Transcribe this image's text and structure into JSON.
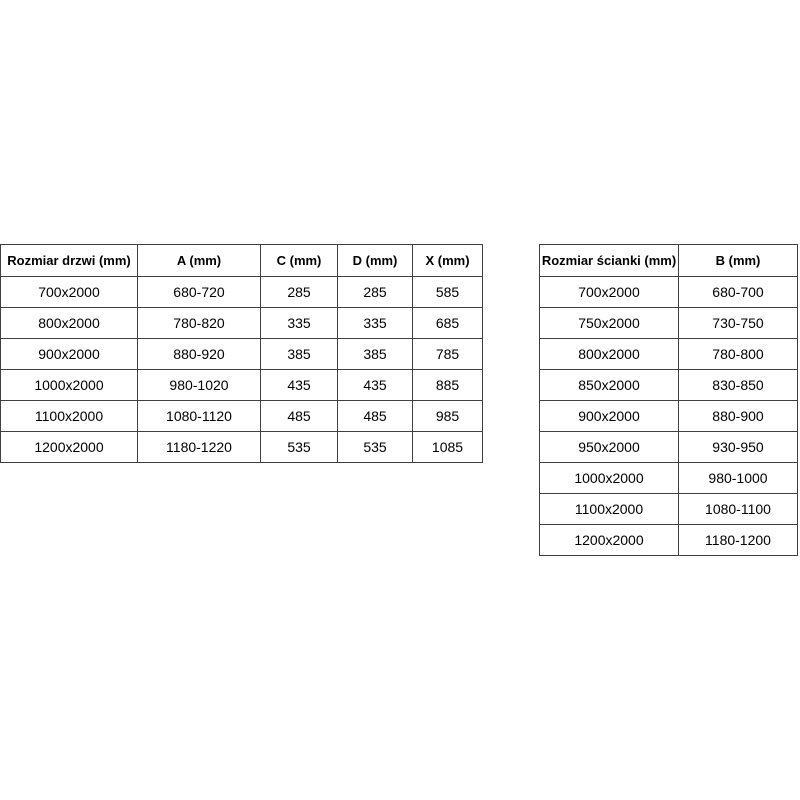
{
  "page": {
    "background_color": "#ffffff",
    "border_color": "#404040",
    "text_color": "#000000"
  },
  "tables": {
    "doors": {
      "title": "door sizes",
      "headers": [
        "Rozmiar drzwi (mm)",
        "A (mm)",
        "C (mm)",
        "D (mm)",
        "X (mm)"
      ],
      "rows": [
        [
          "700x2000",
          "680-720",
          "285",
          "285",
          "585"
        ],
        [
          "800x2000",
          "780-820",
          "335",
          "335",
          "685"
        ],
        [
          "900x2000",
          "880-920",
          "385",
          "385",
          "785"
        ],
        [
          "1000x2000",
          "980-1020",
          "435",
          "435",
          "885"
        ],
        [
          "1100x2000",
          "1080-1120",
          "485",
          "485",
          "985"
        ],
        [
          "1200x2000",
          "1180-1220",
          "535",
          "535",
          "1085"
        ]
      ]
    },
    "walls": {
      "title": "wall sizes",
      "headers": [
        "Rozmiar ścianki (mm)",
        "B (mm)"
      ],
      "rows": [
        [
          "700x2000",
          "680-700"
        ],
        [
          "750x2000",
          "730-750"
        ],
        [
          "800x2000",
          "780-800"
        ],
        [
          "850x2000",
          "830-850"
        ],
        [
          "900x2000",
          "880-900"
        ],
        [
          "950x2000",
          "930-950"
        ],
        [
          "1000x2000",
          "980-1000"
        ],
        [
          "1100x2000",
          "1080-1100"
        ],
        [
          "1200x2000",
          "1180-1200"
        ]
      ]
    }
  }
}
